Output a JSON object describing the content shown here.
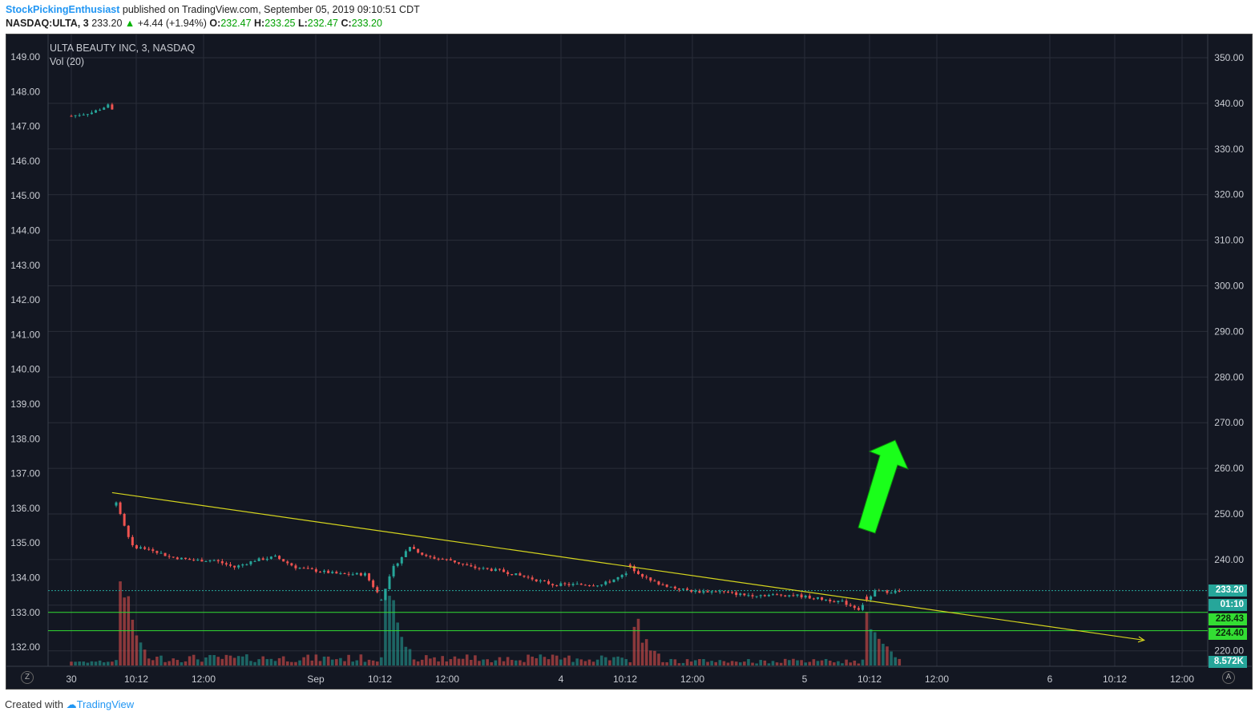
{
  "header": {
    "author": "StockPickingEnthusiast",
    "published_text": "published on TradingView.com, September 05, 2019 09:10:51 CDT",
    "symbol": "NASDAQ:ULTA, 3",
    "last": "233.20",
    "change_arrow": "▲",
    "change": "+4.44 (+1.94%)",
    "o_label": "O:",
    "o_val": "232.47",
    "h_label": "H:",
    "h_val": "233.25",
    "l_label": "L:",
    "l_val": "232.47",
    "c_label": "C:",
    "c_val": "233.20"
  },
  "legend": {
    "title": "ULTA BEAUTY INC, 3, NASDAQ",
    "indicator": "Vol (20)"
  },
  "left_axis": [
    "149.00",
    "148.00",
    "147.00",
    "146.00",
    "145.00",
    "144.00",
    "143.00",
    "142.00",
    "141.00",
    "140.00",
    "139.00",
    "138.00",
    "137.00",
    "136.00",
    "135.00",
    "134.00",
    "133.00",
    "132.00"
  ],
  "right_axis": [
    "350.00",
    "340.00",
    "330.00",
    "320.00",
    "310.00",
    "300.00",
    "290.00",
    "280.00",
    "270.00",
    "260.00",
    "250.00",
    "240.00",
    "230.00",
    "220.00"
  ],
  "time_axis": [
    "30",
    "10:12",
    "12:00",
    "Sep",
    "10:12",
    "12:00",
    "4",
    "10:12",
    "12:00",
    "5",
    "10:12",
    "12:00",
    "6",
    "10:12",
    "12:00"
  ],
  "tags": {
    "price": "233.20",
    "countdown": "01:10",
    "level1": "228.43",
    "level2": "224.40",
    "volume": "8.572K"
  },
  "buttons": {
    "left_scale": "Z",
    "right_scale": "A"
  },
  "footer": {
    "created_with": "Created with",
    "brand": "TradingView"
  },
  "colors": {
    "background": "#131722",
    "up": "#26a69a",
    "down": "#ef5350",
    "trendline": "#d4d41e",
    "level_lines": "#33dd33",
    "arrow": "#1aff1a",
    "price_line": "#26a69a"
  },
  "chart_data": {
    "type": "candlestick",
    "symbol": "NASDAQ:ULTA",
    "interval": "3",
    "left_ylim": [
      131.6,
      149.4
    ],
    "right_ylim": [
      216,
      354
    ],
    "close_path": [
      [
        0,
        147.3
      ],
      [
        0.5,
        147.4
      ],
      [
        0.9,
        147.6
      ],
      [
        1.05,
        147.4
      ],
      [
        1.1,
        136.2
      ],
      [
        1.3,
        135.5
      ],
      [
        1.5,
        134.9
      ],
      [
        2.0,
        134.8
      ],
      [
        2.4,
        134.6
      ],
      [
        3.0,
        134.5
      ],
      [
        3.5,
        134.5
      ],
      [
        4.0,
        134.3
      ],
      [
        4.5,
        134.5
      ],
      [
        5.0,
        134.6
      ],
      [
        5.5,
        134.3
      ],
      [
        6.0,
        134.2
      ],
      [
        6.6,
        134.1
      ],
      [
        7.2,
        134.1
      ],
      [
        7.6,
        133.4
      ],
      [
        7.9,
        134.3
      ],
      [
        8.3,
        134.9
      ],
      [
        8.7,
        134.6
      ],
      [
        9.3,
        134.5
      ],
      [
        9.8,
        134.3
      ],
      [
        10.5,
        134.2
      ],
      [
        11.2,
        134.0
      ],
      [
        11.8,
        133.8
      ],
      [
        12.4,
        133.8
      ],
      [
        13.0,
        133.8
      ],
      [
        13.6,
        134.1
      ],
      [
        13.7,
        134.3
      ],
      [
        14.2,
        133.9
      ],
      [
        14.8,
        133.7
      ],
      [
        15.3,
        133.6
      ],
      [
        15.9,
        133.6
      ],
      [
        16.5,
        133.5
      ],
      [
        17.1,
        133.5
      ],
      [
        17.7,
        133.5
      ],
      [
        18.3,
        133.4
      ],
      [
        18.9,
        133.3
      ],
      [
        19.3,
        133.1
      ],
      [
        19.45,
        133.3
      ],
      [
        19.7,
        133.6
      ],
      [
        20.3,
        133.6
      ]
    ],
    "trendline": {
      "start": {
        "t": 1.0,
        "price": 136.45
      },
      "end": {
        "t": 26.3,
        "price": 132.2
      }
    },
    "horizontal_levels_right_axis": [
      228.43,
      224.4
    ],
    "last_price": 233.2,
    "last_volume": "8.572K"
  }
}
